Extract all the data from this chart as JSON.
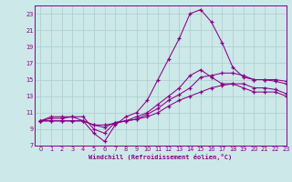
{
  "xlabel": "Windchill (Refroidissement éolien,°C)",
  "background_color": "#cce8e8",
  "line_color": "#880088",
  "grid_color": "#aacccc",
  "xlim": [
    -0.5,
    23
  ],
  "ylim": [
    7,
    24
  ],
  "xticks": [
    0,
    1,
    2,
    3,
    4,
    5,
    6,
    7,
    8,
    9,
    10,
    11,
    12,
    13,
    14,
    15,
    16,
    17,
    18,
    19,
    20,
    21,
    22,
    23
  ],
  "yticks": [
    7,
    9,
    11,
    13,
    15,
    17,
    19,
    21,
    23
  ],
  "curve_spike_x": [
    0,
    1,
    2,
    3,
    4,
    5,
    6,
    7,
    8,
    9,
    10,
    11,
    12,
    13,
    14,
    15,
    16,
    17,
    18,
    19,
    20,
    21,
    22,
    23
  ],
  "curve_spike_y": [
    10,
    10.5,
    10.5,
    10.5,
    10.0,
    8.5,
    7.5,
    9.5,
    10.5,
    11.0,
    12.5,
    15.0,
    17.5,
    20.0,
    23.0,
    23.5,
    22.0,
    19.5,
    16.5,
    15.3,
    15.0,
    15.0,
    15.0,
    14.8
  ],
  "curve_mid1_x": [
    0,
    1,
    2,
    3,
    4,
    5,
    6,
    7,
    8,
    9,
    10,
    11,
    12,
    13,
    14,
    15,
    16,
    17,
    18,
    19,
    20,
    21,
    22,
    23
  ],
  "curve_mid1_y": [
    10,
    10.3,
    10.3,
    10.5,
    10.5,
    9.0,
    8.5,
    9.8,
    10.0,
    10.5,
    11.0,
    12.0,
    13.0,
    14.0,
    15.5,
    16.2,
    15.3,
    14.5,
    14.5,
    14.0,
    13.5,
    13.5,
    13.5,
    13.0
  ],
  "curve_mid2_x": [
    0,
    1,
    2,
    3,
    4,
    5,
    6,
    7,
    8,
    9,
    10,
    11,
    12,
    13,
    14,
    15,
    16,
    17,
    18,
    19,
    20,
    21,
    22,
    23
  ],
  "curve_mid2_y": [
    10,
    10.0,
    10.0,
    10.0,
    10.0,
    9.5,
    9.2,
    9.8,
    10.0,
    10.2,
    10.8,
    11.5,
    12.5,
    13.2,
    14.0,
    15.3,
    15.5,
    15.8,
    15.8,
    15.5,
    15.0,
    15.0,
    14.8,
    14.5
  ],
  "curve_low_x": [
    0,
    1,
    2,
    3,
    4,
    5,
    6,
    7,
    8,
    9,
    10,
    11,
    12,
    13,
    14,
    15,
    16,
    17,
    18,
    19,
    20,
    21,
    22,
    23
  ],
  "curve_low_y": [
    10,
    10.0,
    10.0,
    10.0,
    10.0,
    9.5,
    9.5,
    9.7,
    10.0,
    10.2,
    10.5,
    11.0,
    11.8,
    12.5,
    13.0,
    13.5,
    14.0,
    14.3,
    14.5,
    14.5,
    14.0,
    14.0,
    13.8,
    13.3
  ]
}
